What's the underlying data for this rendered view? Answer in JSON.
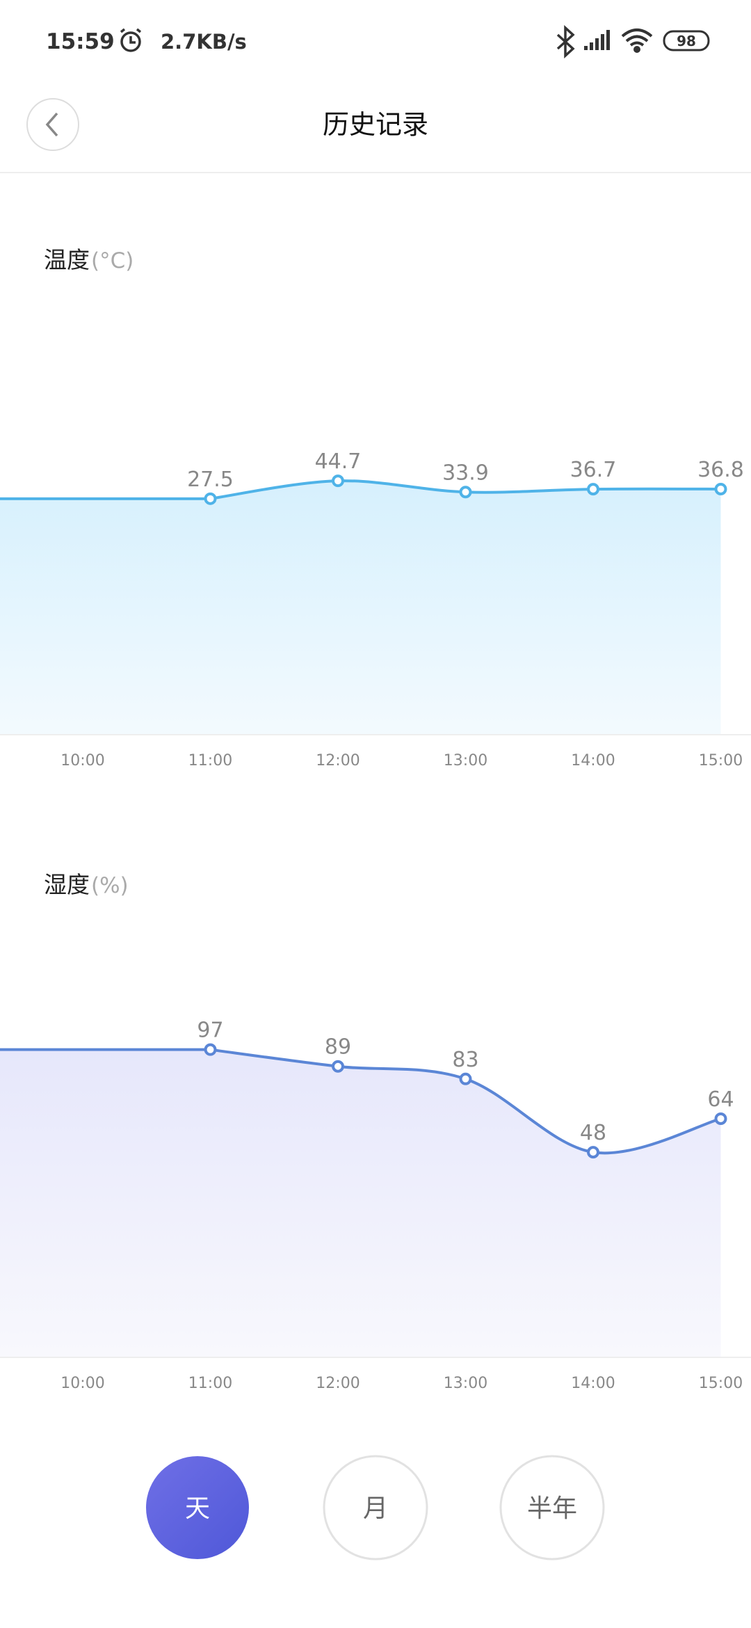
{
  "status_bar": {
    "time": "15:59",
    "speed": "2.7KB/s",
    "battery": "98"
  },
  "header": {
    "title": "历史记录"
  },
  "chart_data": [
    {
      "type": "line",
      "title": "温度",
      "unit": "(°C)",
      "categories": [
        "10:00",
        "11:00",
        "12:00",
        "13:00",
        "14:00",
        "15:00"
      ],
      "values": [
        null,
        27.5,
        44.7,
        33.9,
        36.7,
        36.8
      ],
      "color": "#4fb3e8",
      "fill": "#d6f0fd",
      "ylim": [
        -200,
        240
      ]
    },
    {
      "type": "line",
      "title": "湿度",
      "unit": "(%)",
      "categories": [
        "10:00",
        "11:00",
        "12:00",
        "13:00",
        "14:00",
        "15:00"
      ],
      "values": [
        null,
        97,
        89,
        83,
        48,
        64
      ],
      "color": "#5b86d6",
      "fill": "#e6e7fb",
      "ylim": [
        -50,
        172
      ]
    }
  ],
  "buttons": [
    "天",
    "月",
    "半年"
  ]
}
